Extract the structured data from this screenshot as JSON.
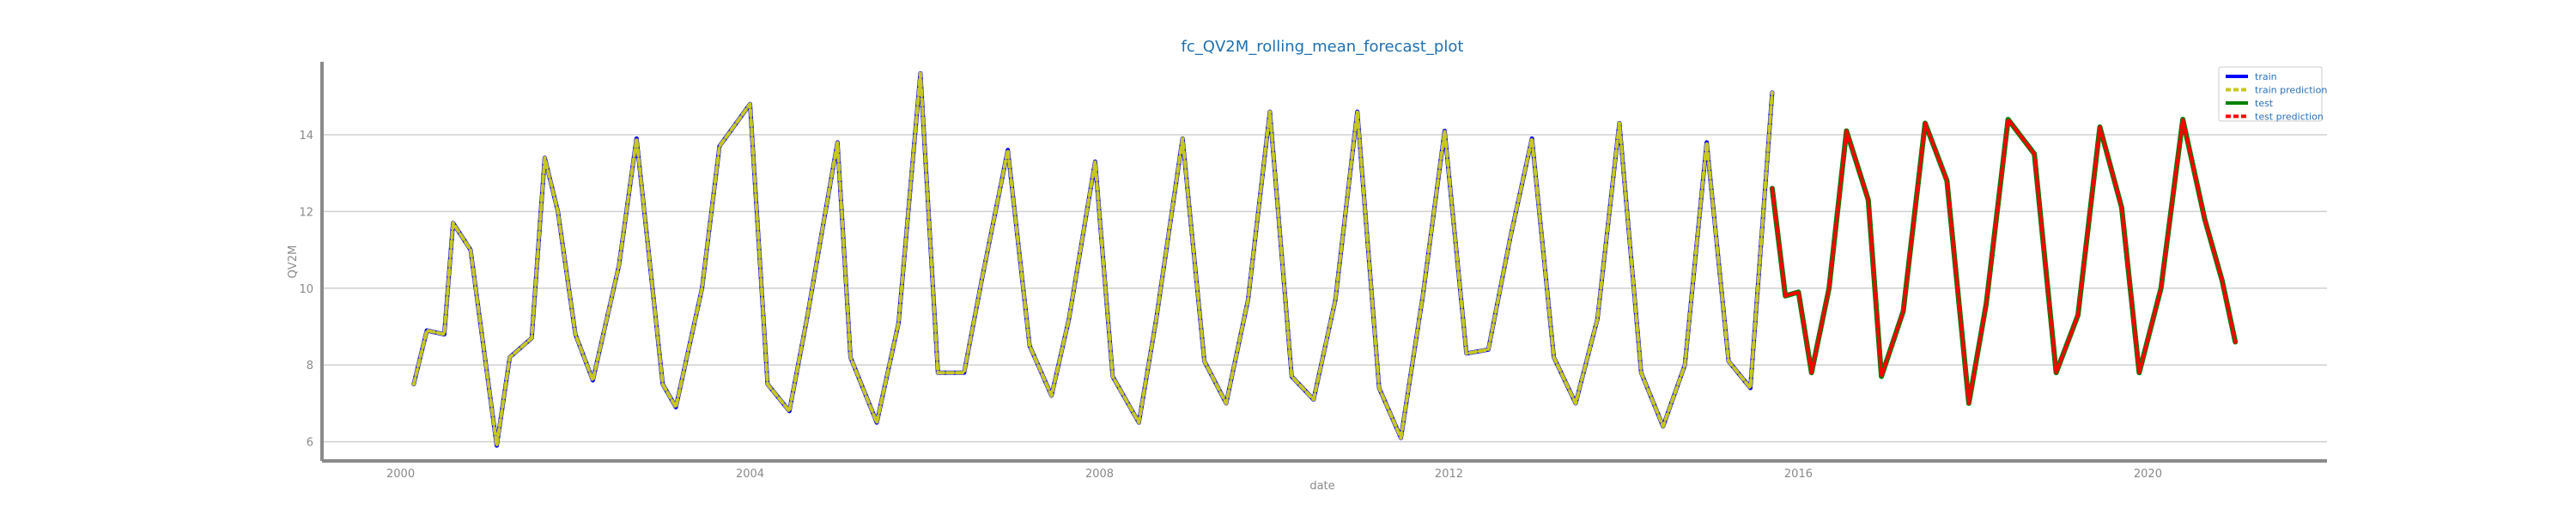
{
  "chart_data": {
    "type": "line",
    "title": "fc_QV2M_rolling_mean_forecast_plot",
    "xlabel": "date",
    "ylabel": "QV2M",
    "xlim": [
      1999.1,
      2022.05
    ],
    "ylim": [
      5.5,
      15.9
    ],
    "x_ticks": [
      2000,
      2004,
      2008,
      2012,
      2016,
      2020
    ],
    "x_tick_labels": [
      "2000",
      "2004",
      "2008",
      "2012",
      "2016",
      "2020"
    ],
    "y_ticks": [
      6,
      8,
      10,
      12,
      14
    ],
    "y_tick_labels": [
      "6",
      "8",
      "10",
      "12",
      "14"
    ],
    "grid": "horizontal",
    "legend_position": "top-right",
    "series": [
      {
        "name": "train",
        "color": "#0000ff",
        "style": "solid",
        "x": [
          2000.15,
          2000.3,
          2000.5,
          2000.6,
          2000.8,
          2001.0,
          2001.1,
          2001.25,
          2001.5,
          2001.65,
          2001.8,
          2002.0,
          2002.2,
          2002.5,
          2002.7,
          2003.0,
          2003.15,
          2003.45,
          2003.65,
          2004.0,
          2004.2,
          2004.45,
          2004.65,
          2005.0,
          2005.15,
          2005.45,
          2005.7,
          2005.95,
          2006.15,
          2006.45,
          2006.65,
          2006.95,
          2007.2,
          2007.45,
          2007.65,
          2007.95,
          2008.15,
          2008.45,
          2008.65,
          2008.95,
          2009.2,
          2009.45,
          2009.7,
          2009.95,
          2010.2,
          2010.45,
          2010.7,
          2010.95,
          2011.2,
          2011.45,
          2011.7,
          2011.95,
          2012.2,
          2012.45,
          2012.7,
          2012.95,
          2013.2,
          2013.45,
          2013.7,
          2013.95,
          2014.2,
          2014.45,
          2014.7,
          2014.95,
          2015.2,
          2015.45,
          2015.7
        ],
        "y": [
          7.5,
          8.9,
          8.8,
          11.7,
          11.0,
          7.6,
          5.9,
          8.2,
          8.7,
          13.4,
          12.0,
          8.8,
          7.6,
          10.6,
          13.9,
          7.5,
          6.9,
          10.0,
          13.7,
          14.8,
          7.5,
          6.8,
          9.2,
          13.8,
          8.2,
          6.5,
          9.1,
          15.6,
          7.8,
          7.8,
          10.2,
          13.6,
          8.5,
          7.2,
          9.2,
          13.3,
          7.7,
          6.5,
          9.2,
          13.9,
          8.1,
          7.0,
          9.7,
          14.6,
          7.7,
          7.1,
          9.7,
          14.6,
          7.4,
          6.1,
          9.8,
          14.1,
          8.3,
          8.4,
          11.3,
          13.9,
          8.2,
          7.0,
          9.2,
          14.3,
          7.8,
          6.4,
          8.0,
          13.8,
          8.1,
          7.4,
          15.1
        ]
      },
      {
        "name": "train prediction",
        "color": "#c8c81e",
        "style": "dashed",
        "x": [
          2000.15,
          2000.3,
          2000.5,
          2000.6,
          2000.8,
          2001.0,
          2001.1,
          2001.25,
          2001.5,
          2001.65,
          2001.8,
          2002.0,
          2002.2,
          2002.5,
          2002.7,
          2003.0,
          2003.15,
          2003.45,
          2003.65,
          2004.0,
          2004.2,
          2004.45,
          2004.65,
          2005.0,
          2005.15,
          2005.45,
          2005.7,
          2005.95,
          2006.15,
          2006.45,
          2006.65,
          2006.95,
          2007.2,
          2007.45,
          2007.65,
          2007.95,
          2008.15,
          2008.45,
          2008.65,
          2008.95,
          2009.2,
          2009.45,
          2009.7,
          2009.95,
          2010.2,
          2010.45,
          2010.7,
          2010.95,
          2011.2,
          2011.45,
          2011.7,
          2011.95,
          2012.2,
          2012.45,
          2012.7,
          2012.95,
          2013.2,
          2013.45,
          2013.7,
          2013.95,
          2014.2,
          2014.45,
          2014.7,
          2014.95,
          2015.2,
          2015.45,
          2015.7
        ],
        "y": [
          7.5,
          8.9,
          8.8,
          11.7,
          11.0,
          7.6,
          5.9,
          8.2,
          8.7,
          13.4,
          12.0,
          8.8,
          7.6,
          10.6,
          13.9,
          7.5,
          6.9,
          10.0,
          13.7,
          14.8,
          7.5,
          6.8,
          9.2,
          13.8,
          8.2,
          6.5,
          9.1,
          15.6,
          7.8,
          7.8,
          10.2,
          13.6,
          8.5,
          7.2,
          9.2,
          13.3,
          7.7,
          6.5,
          9.2,
          13.9,
          8.1,
          7.0,
          9.7,
          14.6,
          7.7,
          7.1,
          9.7,
          14.6,
          7.4,
          6.1,
          9.8,
          14.1,
          8.3,
          8.4,
          11.3,
          13.9,
          8.2,
          7.0,
          9.2,
          14.3,
          7.8,
          6.4,
          8.0,
          13.8,
          8.1,
          7.4,
          15.1
        ]
      },
      {
        "name": "test",
        "color": "#008000",
        "style": "solid",
        "x": [
          2015.7,
          2015.85,
          2016.0,
          2016.15,
          2016.35,
          2016.55,
          2016.8,
          2016.95,
          2017.2,
          2017.45,
          2017.7,
          2017.95,
          2018.15,
          2018.4,
          2018.7,
          2018.95,
          2019.2,
          2019.45,
          2019.7,
          2019.9,
          2020.15,
          2020.4,
          2020.65,
          2020.85,
          2021.0
        ],
        "y": [
          12.6,
          9.8,
          9.9,
          7.8,
          10.0,
          14.1,
          12.3,
          7.7,
          9.4,
          14.3,
          12.8,
          7.0,
          9.6,
          14.4,
          13.5,
          7.8,
          9.3,
          14.2,
          12.1,
          7.8,
          10.0,
          14.4,
          11.8,
          10.2,
          8.6
        ]
      },
      {
        "name": "test prediction",
        "color": "#ff0000",
        "style": "dashed",
        "x": [
          2015.7,
          2015.85,
          2016.0,
          2016.15,
          2016.35,
          2016.55,
          2016.8,
          2016.95,
          2017.2,
          2017.45,
          2017.7,
          2017.95,
          2018.15,
          2018.4,
          2018.7,
          2018.95,
          2019.2,
          2019.45,
          2019.7,
          2019.9,
          2020.15,
          2020.4,
          2020.65,
          2020.85,
          2021.0
        ],
        "y": [
          12.6,
          9.8,
          9.9,
          7.8,
          10.0,
          14.1,
          12.3,
          7.7,
          9.4,
          14.3,
          12.8,
          7.0,
          9.6,
          14.4,
          13.5,
          7.8,
          9.3,
          14.2,
          12.1,
          7.8,
          10.0,
          14.4,
          11.8,
          10.2,
          8.6
        ]
      }
    ]
  }
}
